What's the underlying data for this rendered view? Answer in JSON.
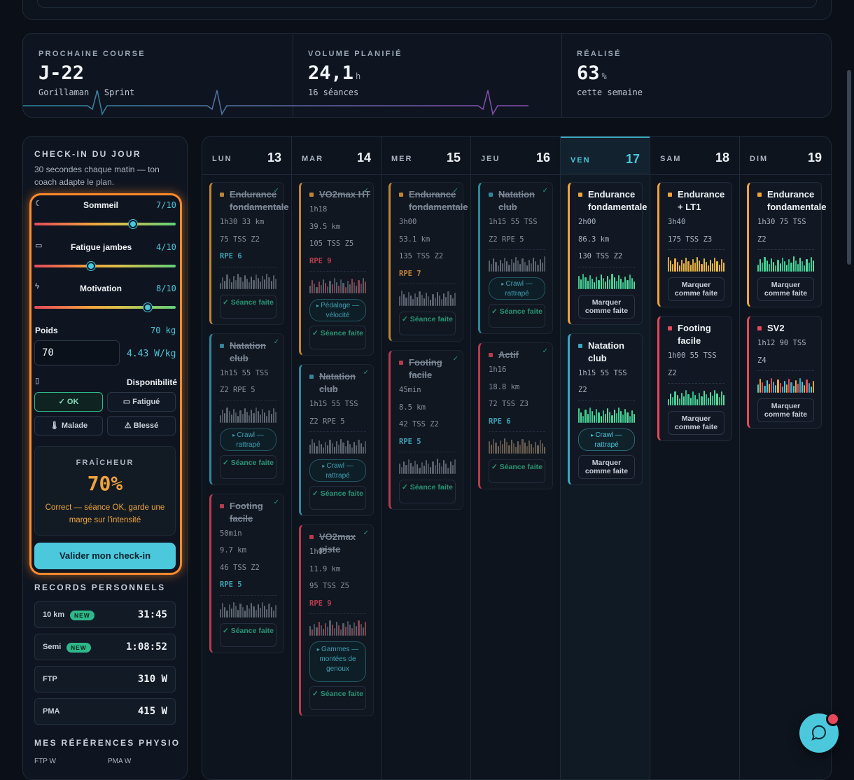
{
  "stats": [
    {
      "label": "PROCHAINE COURSE",
      "value": "J-22",
      "unit": "",
      "sub": "Gorillaman · Sprint"
    },
    {
      "label": "VOLUME PLANIFIÉ",
      "value": "24,1",
      "unit": "h",
      "sub": "16 séances"
    },
    {
      "label": "RÉALISÉ",
      "value": "63",
      "unit": "%",
      "sub": "cette semaine"
    }
  ],
  "checkin": {
    "title": "CHECK-IN DU JOUR",
    "intro": "30 secondes chaque matin — ton coach adapte le plan.",
    "sliders": [
      {
        "label": "Sommeil",
        "value": "7/10",
        "level": 0.7,
        "icon": "moon-icon",
        "glyph": "☾"
      },
      {
        "label": "Fatigue jambes",
        "value": "4/10",
        "level": 0.4,
        "icon": "battery-icon",
        "glyph": "▭"
      },
      {
        "label": "Motivation",
        "value": "8/10",
        "level": 0.8,
        "icon": "lightning-icon",
        "glyph": "ϟ"
      }
    ],
    "poids_label": "Poids",
    "poids_value": "70 kg",
    "poids_input": "70",
    "ratio": "4.43 W/kg",
    "dispo_label": "Disponibilité",
    "dispo": [
      {
        "label": "✓ OK",
        "selected": true
      },
      {
        "label": "▭ Fatigué",
        "selected": false
      },
      {
        "label": "🌡 Malade",
        "selected": false
      },
      {
        "label": "⚠ Blessé",
        "selected": false
      }
    ],
    "fraicheur_label": "FRAÎCHEUR",
    "fraicheur_value": "70%",
    "fraicheur_desc": "Correct — séance OK, garde une marge sur l'intensité",
    "validate": "Valider mon check-in"
  },
  "records": {
    "title": "RECORDS PERSONNELS",
    "items": [
      {
        "name": "10 km",
        "new": "NEW",
        "value": "31:45"
      },
      {
        "name": "Semi",
        "new": "NEW",
        "value": "1:08:52"
      },
      {
        "name": "FTP",
        "new": "",
        "value": "310 W"
      },
      {
        "name": "PMA",
        "new": "",
        "value": "415 W"
      }
    ]
  },
  "physio": {
    "title": "MES RÉFÉRENCES PHYSIO",
    "ftp_label": "FTP",
    "ftp_unit": "W",
    "pma_label": "PMA",
    "pma_unit": "W"
  },
  "colors": {
    "accent": "#4cc8dc",
    "orange": "#ff8a2b",
    "run": "#e5485a",
    "bike": "#f0a33c",
    "swim": "#3aa6bd",
    "ok": "#2fb88a"
  },
  "days": [
    {
      "name": "LUN",
      "date": "13",
      "today": false,
      "cards": [
        {
          "title": "Endurance fondamentale",
          "done": true,
          "sport": "bike",
          "lines": [
            "1h30  33 km",
            "75 TSS  Z2"
          ],
          "rpe": "RPE 6",
          "pill": "",
          "button": "Séance faite",
          "btn_done": true,
          "bars": "grey"
        },
        {
          "title": "Natation club",
          "done": true,
          "sport": "swim",
          "lines": [
            "1h15  55 TSS",
            "Z2  RPE 5"
          ],
          "rpe": "",
          "pill": "Crawl — rattrapé",
          "button": "Séance faite",
          "btn_done": true,
          "bars": "grey"
        },
        {
          "title": "Footing facile",
          "done": true,
          "sport": "run",
          "lines": [
            "50min",
            "9.7 km",
            "46 TSS  Z2"
          ],
          "rpe": "RPE 5",
          "pill": "",
          "button": "Séance faite",
          "btn_done": true,
          "bars": "grey"
        }
      ]
    },
    {
      "name": "MAR",
      "date": "14",
      "today": false,
      "cards": [
        {
          "title": "VO2max HT",
          "done": true,
          "sport": "bike",
          "lines": [
            "1h18",
            "39.5 km",
            "105 TSS  Z5"
          ],
          "rpe": "RPE 9",
          "pill": "Pédalage — vélocité",
          "button": "Séance faite",
          "btn_done": true,
          "bars": "grey-red"
        },
        {
          "title": "Natation club",
          "done": true,
          "sport": "swim",
          "lines": [
            "1h15  55 TSS",
            "Z2  RPE 5"
          ],
          "rpe": "",
          "pill": "Crawl — rattrapé",
          "button": "Séance faite",
          "btn_done": true,
          "bars": "grey"
        },
        {
          "title": "VO2max piste",
          "done": true,
          "sport": "run",
          "lines": [
            "1h05",
            "11.9 km",
            "95 TSS  Z5"
          ],
          "rpe": "RPE 9",
          "pill": "Gammes — montées de genoux",
          "button": "Séance faite",
          "btn_done": true,
          "bars": "grey-red"
        }
      ]
    },
    {
      "name": "MER",
      "date": "15",
      "today": false,
      "cards": [
        {
          "title": "Endurance fondamentale",
          "done": true,
          "sport": "bike",
          "lines": [
            "3h00",
            "53.1 km",
            "135 TSS  Z2"
          ],
          "rpe": "RPE 7",
          "pill": "",
          "button": "Séance faite",
          "btn_done": true,
          "bars": "grey"
        },
        {
          "title": "Footing facile",
          "done": true,
          "sport": "run",
          "lines": [
            "45min",
            "8.5 km",
            "42 TSS  Z2"
          ],
          "rpe": "RPE 5",
          "pill": "",
          "button": "Séance faite",
          "btn_done": true,
          "bars": "grey"
        }
      ]
    },
    {
      "name": "JEU",
      "date": "16",
      "today": false,
      "cards": [
        {
          "title": "Natation club",
          "done": true,
          "sport": "swim",
          "lines": [
            "1h15  55 TSS",
            "Z2  RPE 5"
          ],
          "rpe": "",
          "pill": "Crawl — rattrapé",
          "button": "Séance faite",
          "btn_done": true,
          "bars": "grey"
        },
        {
          "title": "Actif",
          "done": true,
          "sport": "run",
          "lines": [
            "1h16",
            "18.8 km",
            "72 TSS  Z3"
          ],
          "rpe": "RPE 6",
          "pill": "",
          "button": "Séance faite",
          "btn_done": true,
          "bars": "brown"
        }
      ]
    },
    {
      "name": "VEN",
      "date": "17",
      "today": true,
      "cards": [
        {
          "title": "Endurance fondamentale",
          "done": false,
          "sport": "bike",
          "lines": [
            "2h00",
            "86.3 km",
            "130 TSS  Z2"
          ],
          "rpe": "",
          "pill": "",
          "button": "Marquer comme faite",
          "btn_done": false,
          "bars": "green"
        },
        {
          "title": "Natation club",
          "done": false,
          "sport": "swim",
          "lines": [
            "1h15  55 TSS",
            "Z2"
          ],
          "rpe": "",
          "pill": "Crawl — rattrapé",
          "button": "Marquer comme faite",
          "btn_done": false,
          "bars": "green"
        }
      ]
    },
    {
      "name": "SAM",
      "date": "18",
      "today": false,
      "cards": [
        {
          "title": "Endurance + LT1",
          "done": false,
          "sport": "bike",
          "lines": [
            "3h40",
            "175 TSS  Z3"
          ],
          "rpe": "",
          "pill": "",
          "button": "Marquer comme faite",
          "btn_done": false,
          "bars": "orange"
        },
        {
          "title": "Footing facile",
          "done": false,
          "sport": "run",
          "lines": [
            "1h00  55 TSS",
            "Z2"
          ],
          "rpe": "",
          "pill": "",
          "button": "Marquer comme faite",
          "btn_done": false,
          "bars": "green"
        }
      ]
    },
    {
      "name": "DIM",
      "date": "19",
      "today": false,
      "cards": [
        {
          "title": "Endurance fondamentale",
          "done": false,
          "sport": "bike",
          "lines": [
            "1h30  75 TSS",
            "Z2"
          ],
          "rpe": "",
          "pill": "",
          "button": "Marquer comme faite",
          "btn_done": false,
          "bars": "green"
        },
        {
          "title": "SV2",
          "done": false,
          "sport": "run",
          "lines": [
            "1h12  90 TSS",
            "Z4"
          ],
          "rpe": "",
          "pill": "",
          "button": "Marquer comme faite",
          "btn_done": false,
          "bars": "mixed"
        }
      ]
    }
  ]
}
